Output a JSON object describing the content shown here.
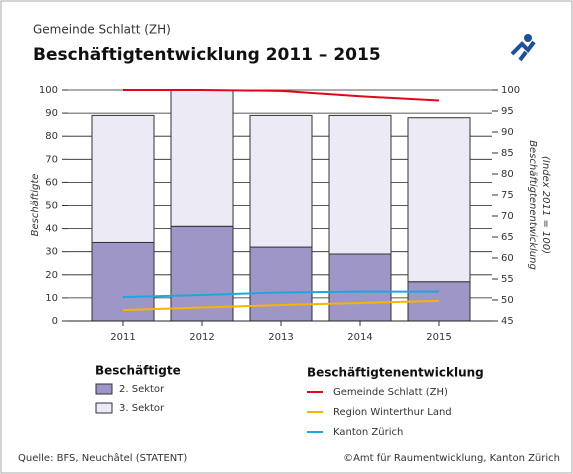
{
  "chart_data": {
    "type": "bar",
    "subtitle": "Gemeinde Schlatt (ZH)",
    "title": "Beschäftigtentwicklung 2011 – 2015",
    "ylabel": "Beschäftigte",
    "y2label": [
      "Beschäftigtenentwicklung",
      "(Index 2011 = 100)"
    ],
    "categories": [
      "2011",
      "2012",
      "2013",
      "2014",
      "2015"
    ],
    "series": [
      {
        "name": "2. Sektor",
        "color": "#9f96c8",
        "values": [
          34,
          41,
          32,
          29,
          17
        ]
      },
      {
        "name": "3. Sektor",
        "color": "#eceaf4",
        "values": [
          55,
          59,
          57,
          60,
          71
        ]
      },
      {
        "name": "Gemeinde Schlatt (ZH)",
        "color": "#e2061b",
        "axis": "y2",
        "values": [
          100,
          100,
          99.8,
          98.5,
          97.5
        ]
      },
      {
        "name": "Region Winterthur Land",
        "color": "#f7b500",
        "axis": "y2",
        "values": [
          47.6,
          48.2,
          48.8,
          49.3,
          49.8
        ]
      },
      {
        "name": "Kanton Zürich",
        "color": "#1ea7dd",
        "axis": "y2",
        "values": [
          50.7,
          51.2,
          51.8,
          52,
          52
        ]
      }
    ],
    "legend_titles": [
      "Beschäftigte",
      "Beschäftigtenentwicklung"
    ],
    "ylim": [
      0,
      100
    ],
    "yticks": [
      0,
      10,
      20,
      30,
      40,
      50,
      60,
      70,
      80,
      90,
      100
    ],
    "y2lim": [
      45,
      100
    ],
    "y2ticks": [
      45,
      50,
      55,
      60,
      65,
      70,
      75,
      80,
      85,
      90,
      95,
      100
    ],
    "grid": true,
    "source": "Quelle: BFS, Neuchâtel (STATENT)",
    "credit": "©Amt für Raumentwicklung, Kanton Zürich"
  }
}
